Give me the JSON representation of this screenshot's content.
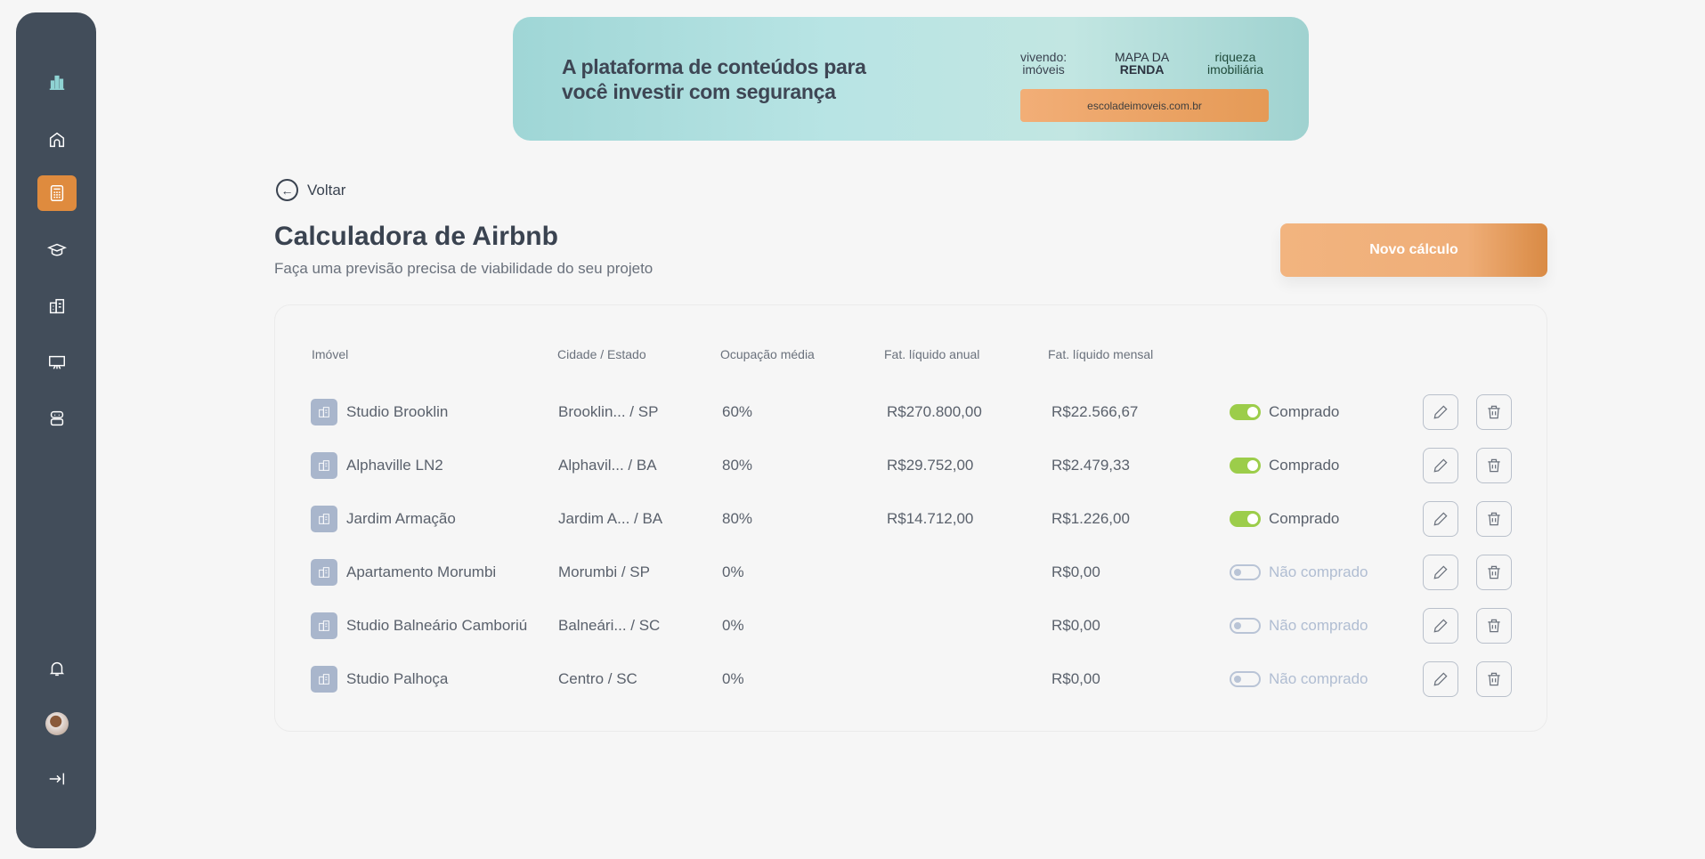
{
  "sidebar": {
    "items": [
      {
        "icon": "logo-icon"
      },
      {
        "icon": "home-icon"
      },
      {
        "icon": "calculator-icon",
        "active": true
      },
      {
        "icon": "graduation-cap-icon"
      },
      {
        "icon": "building-icon"
      },
      {
        "icon": "presentation-icon"
      },
      {
        "icon": "robot-icon"
      }
    ],
    "bottom": [
      {
        "icon": "bell-icon"
      },
      {
        "icon": "avatar"
      },
      {
        "icon": "logout-icon"
      }
    ]
  },
  "banner": {
    "headline_1": "A plataforma de conteúdos para",
    "headline_2": "você investir com segurança",
    "logos": [
      "vivendo de imóveis",
      "MAPA DA RENDA",
      "riqueza imobiliária"
    ],
    "url": "escoladeimoveis.com.br"
  },
  "back_label": "Voltar",
  "page": {
    "title": "Calculadora de Airbnb",
    "subtitle": "Faça uma previsão precisa de viabilidade do seu projeto",
    "new_button": "Novo cálculo"
  },
  "table": {
    "headers": [
      "Imóvel",
      "Cidade / Estado",
      "Ocupação média",
      "Fat. líquido anual",
      "Fat. líquido mensal"
    ],
    "rows": [
      {
        "name": "Studio Brooklin",
        "city": "Brooklin... / SP",
        "occupancy": "60%",
        "annual": "R$270.800,00",
        "monthly": "R$22.566,67",
        "purchased": true,
        "status": "Comprado"
      },
      {
        "name": "Alphaville LN2",
        "city": "Alphavil... / BA",
        "occupancy": "80%",
        "annual": "R$29.752,00",
        "monthly": "R$2.479,33",
        "purchased": true,
        "status": "Comprado"
      },
      {
        "name": "Jardim Armação",
        "city": "Jardim A... / BA",
        "occupancy": "80%",
        "annual": "R$14.712,00",
        "monthly": "R$1.226,00",
        "purchased": true,
        "status": "Comprado"
      },
      {
        "name": "Apartamento Morumbi",
        "city": "Morumbi / SP",
        "occupancy": "0%",
        "annual": "",
        "monthly": "R$0,00",
        "purchased": false,
        "status": "Não comprado"
      },
      {
        "name": "Studio Balneário Camboriú",
        "city": "Balneári... / SC",
        "occupancy": "0%",
        "annual": "",
        "monthly": "R$0,00",
        "purchased": false,
        "status": "Não comprado"
      },
      {
        "name": "Studio Palhoça",
        "city": "Centro / SC",
        "occupancy": "0%",
        "annual": "",
        "monthly": "R$0,00",
        "purchased": false,
        "status": "Não comprado"
      }
    ]
  },
  "colors": {
    "sidebar": "#424d5a",
    "accent": "#df8b3e",
    "toggle_on": "#9ccd4a",
    "toggle_off": "#b9c4d6"
  }
}
